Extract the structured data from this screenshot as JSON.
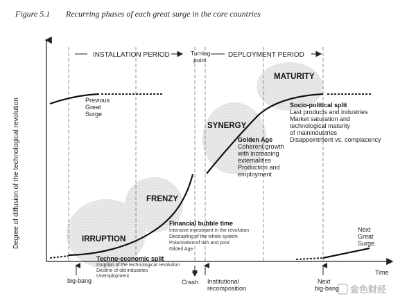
{
  "figure": {
    "number": "Figure 5.1",
    "title": "Recurring phases of each great surge in the core countries"
  },
  "axes": {
    "y_label": "Degree of diffusion of the technological revolution",
    "x_label": "Time"
  },
  "periods": {
    "installation": "INSTALLATION PERIOD",
    "turning_point": [
      "Turning",
      "point"
    ],
    "deployment": "DEPLOYMENT PERIOD"
  },
  "phases": {
    "irruption": "IRRUPTION",
    "frenzy": "FRENZY",
    "synergy": "SYNERGY",
    "maturity": "MATURITY"
  },
  "annotations": {
    "previous_surge": [
      "Previous",
      "Great",
      "Surge"
    ],
    "next_surge": [
      "Next",
      "Great",
      "Surge"
    ],
    "techno_economic": {
      "title": "Techno-economic split",
      "lines": [
        "Irruption of the technological revolution",
        "Decline of old industries",
        "Unemployment"
      ]
    },
    "financial_bubble": {
      "title": "Financial bubble time",
      "lines": [
        "Intensive investment in the revolution",
        "Decoupling of the whole system",
        "Polarization of rich and poor",
        "Gilded Age"
      ]
    },
    "golden_age": {
      "title": "Golden Age",
      "lines": [
        "Coherent growth",
        "with increasing",
        "externalities",
        "Production and",
        "employment"
      ]
    },
    "socio_political": {
      "title": "Socio-political split",
      "lines": [
        "Last products and industries",
        "Market saturation and",
        "technological maturity",
        "of mainindustries",
        "Disappointment vs. complacency"
      ]
    }
  },
  "bottom_labels": {
    "big_bang": "big-bang",
    "crash": "Crash",
    "institutional": [
      "Institutional",
      "recomposition"
    ],
    "next_big_bang": [
      "Next",
      "big-bang"
    ]
  },
  "watermark": "金色财经",
  "colors": {
    "curve": "#111111",
    "dashed": "#666666",
    "texture": "#d9d9d9"
  }
}
